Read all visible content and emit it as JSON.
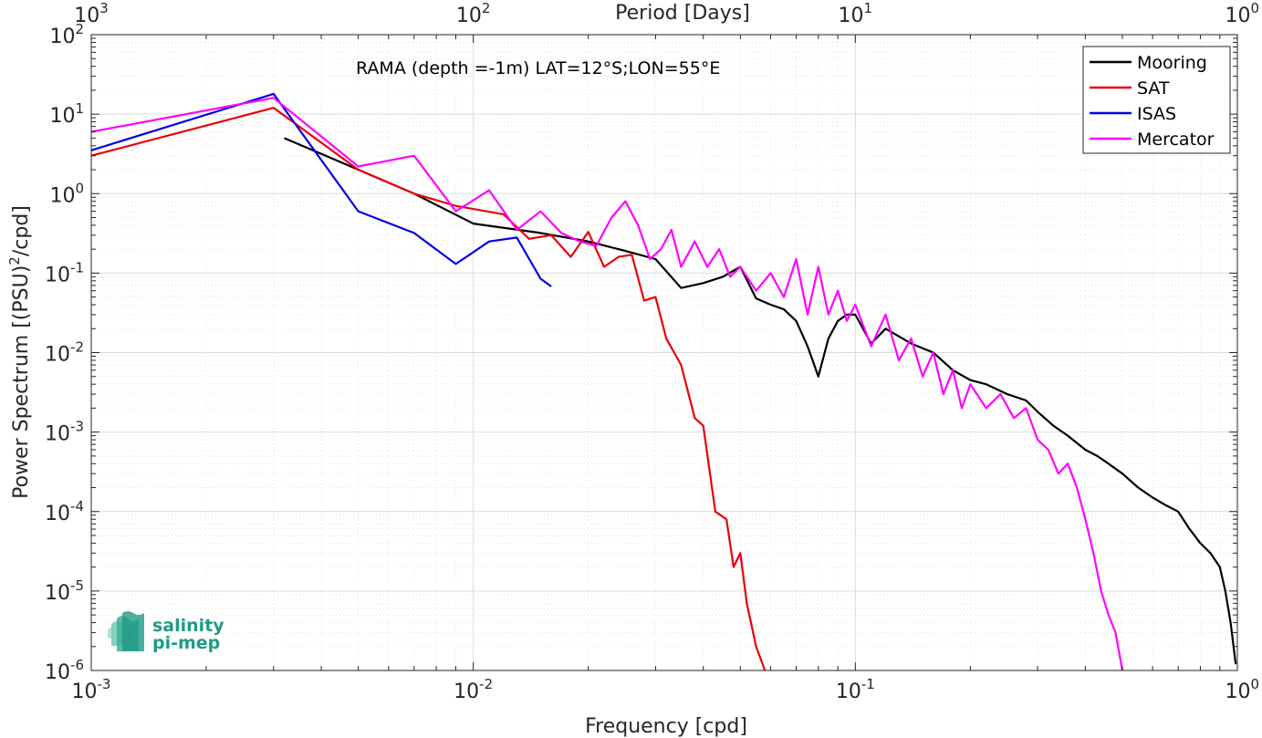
{
  "chart_data": {
    "type": "line",
    "title": "",
    "annotation": "RAMA (depth =-1m) LAT=12°S;LON=55°E",
    "xlabel": "Frequency [cpd]",
    "ylabel": "Power Spectrum [(PSU)²/cpd]",
    "ylabel_parts": {
      "main": "Power Spectrum [(PSU)",
      "sup": "2",
      "tail": "/cpd]"
    },
    "top_xlabel": "Period [Days]",
    "xscale": "log",
    "yscale": "log",
    "xlim": [
      0.001,
      1
    ],
    "ylim": [
      1e-06,
      100
    ],
    "grid": true,
    "legend_position": "top-right",
    "x_ticks": [
      {
        "value": 0.001,
        "base": "10",
        "exp": "-3"
      },
      {
        "value": 0.01,
        "base": "10",
        "exp": "-2"
      },
      {
        "value": 0.1,
        "base": "10",
        "exp": "-1"
      },
      {
        "value": 1,
        "base": "10",
        "exp": "0"
      }
    ],
    "top_x_ticks": [
      {
        "value": 0.001,
        "base": "10",
        "exp": "3"
      },
      {
        "value": 0.01,
        "base": "10",
        "exp": "2"
      },
      {
        "value": 0.1,
        "base": "10",
        "exp": "1"
      },
      {
        "value": 1,
        "base": "10",
        "exp": "0"
      }
    ],
    "y_ticks": [
      {
        "value": 100,
        "base": "10",
        "exp": "2"
      },
      {
        "value": 10,
        "base": "10",
        "exp": "1"
      },
      {
        "value": 1,
        "base": "10",
        "exp": "0"
      },
      {
        "value": 0.1,
        "base": "10",
        "exp": "-1"
      },
      {
        "value": 0.01,
        "base": "10",
        "exp": "-2"
      },
      {
        "value": 0.001,
        "base": "10",
        "exp": "-3"
      },
      {
        "value": 0.0001,
        "base": "10",
        "exp": "-4"
      },
      {
        "value": 1e-05,
        "base": "10",
        "exp": "-5"
      },
      {
        "value": 1e-06,
        "base": "10",
        "exp": "-6"
      }
    ],
    "series": [
      {
        "name": "Mooring",
        "color": "#000000",
        "x": [
          0.0032,
          0.005,
          0.007,
          0.01,
          0.015,
          0.02,
          0.025,
          0.03,
          0.035,
          0.04,
          0.045,
          0.05,
          0.055,
          0.06,
          0.065,
          0.07,
          0.075,
          0.08,
          0.085,
          0.09,
          0.095,
          0.1,
          0.11,
          0.12,
          0.13,
          0.14,
          0.16,
          0.18,
          0.2,
          0.22,
          0.25,
          0.28,
          0.3,
          0.33,
          0.36,
          0.4,
          0.43,
          0.46,
          0.5,
          0.55,
          0.6,
          0.65,
          0.7,
          0.75,
          0.8,
          0.85,
          0.9,
          0.93,
          0.96,
          0.99
        ],
        "values": [
          5,
          2,
          1,
          0.42,
          0.32,
          0.25,
          0.19,
          0.15,
          0.065,
          0.075,
          0.09,
          0.12,
          0.048,
          0.04,
          0.035,
          0.025,
          0.012,
          0.005,
          0.015,
          0.025,
          0.03,
          0.03,
          0.013,
          0.02,
          0.016,
          0.013,
          0.01,
          0.006,
          0.0045,
          0.004,
          0.003,
          0.0025,
          0.0018,
          0.0012,
          0.0009,
          0.0006,
          0.0005,
          0.0004,
          0.0003,
          0.0002,
          0.00015,
          0.00012,
          0.0001,
          6e-05,
          4e-05,
          3e-05,
          2e-05,
          1e-05,
          4e-06,
          1.2e-06
        ]
      },
      {
        "name": "SAT",
        "color": "#e8000b",
        "x": [
          0.001,
          0.003,
          0.005,
          0.007,
          0.009,
          0.012,
          0.014,
          0.016,
          0.018,
          0.02,
          0.022,
          0.024,
          0.026,
          0.028,
          0.03,
          0.032,
          0.035,
          0.038,
          0.04,
          0.043,
          0.046,
          0.048,
          0.05,
          0.052,
          0.055,
          0.058
        ],
        "values": [
          3,
          12,
          2,
          1,
          0.7,
          0.55,
          0.27,
          0.3,
          0.16,
          0.33,
          0.12,
          0.16,
          0.17,
          0.045,
          0.05,
          0.015,
          0.007,
          0.0015,
          0.0012,
          0.0001,
          8e-05,
          2e-05,
          3e-05,
          7e-06,
          2e-06,
          1e-06
        ]
      },
      {
        "name": "ISAS",
        "color": "#0000e6",
        "x": [
          0.001,
          0.003,
          0.005,
          0.007,
          0.009,
          0.011,
          0.013,
          0.015,
          0.016
        ],
        "values": [
          3.5,
          18,
          0.6,
          0.32,
          0.13,
          0.25,
          0.28,
          0.085,
          0.068
        ]
      },
      {
        "name": "Mercator",
        "color": "#ff00ff",
        "x": [
          0.001,
          0.003,
          0.005,
          0.007,
          0.009,
          0.011,
          0.013,
          0.015,
          0.017,
          0.019,
          0.021,
          0.023,
          0.025,
          0.027,
          0.029,
          0.031,
          0.033,
          0.035,
          0.038,
          0.041,
          0.044,
          0.047,
          0.05,
          0.055,
          0.06,
          0.065,
          0.07,
          0.075,
          0.08,
          0.085,
          0.09,
          0.095,
          0.1,
          0.11,
          0.12,
          0.13,
          0.14,
          0.15,
          0.16,
          0.17,
          0.18,
          0.19,
          0.2,
          0.22,
          0.24,
          0.26,
          0.28,
          0.3,
          0.32,
          0.34,
          0.36,
          0.38,
          0.4,
          0.42,
          0.44,
          0.46,
          0.48,
          0.5
        ],
        "values": [
          6,
          16,
          2.2,
          3,
          0.6,
          1.1,
          0.35,
          0.6,
          0.32,
          0.25,
          0.22,
          0.5,
          0.8,
          0.4,
          0.15,
          0.2,
          0.35,
          0.12,
          0.25,
          0.12,
          0.2,
          0.09,
          0.12,
          0.06,
          0.1,
          0.05,
          0.15,
          0.03,
          0.12,
          0.03,
          0.06,
          0.025,
          0.04,
          0.012,
          0.03,
          0.008,
          0.015,
          0.005,
          0.01,
          0.003,
          0.006,
          0.002,
          0.004,
          0.002,
          0.003,
          0.0015,
          0.002,
          0.0008,
          0.0006,
          0.0003,
          0.0004,
          0.0002,
          8e-05,
          3e-05,
          1e-05,
          5e-06,
          3e-06,
          1e-06
        ]
      }
    ]
  },
  "logo": {
    "line1": "salinity",
    "line2": "pi-mep"
  }
}
